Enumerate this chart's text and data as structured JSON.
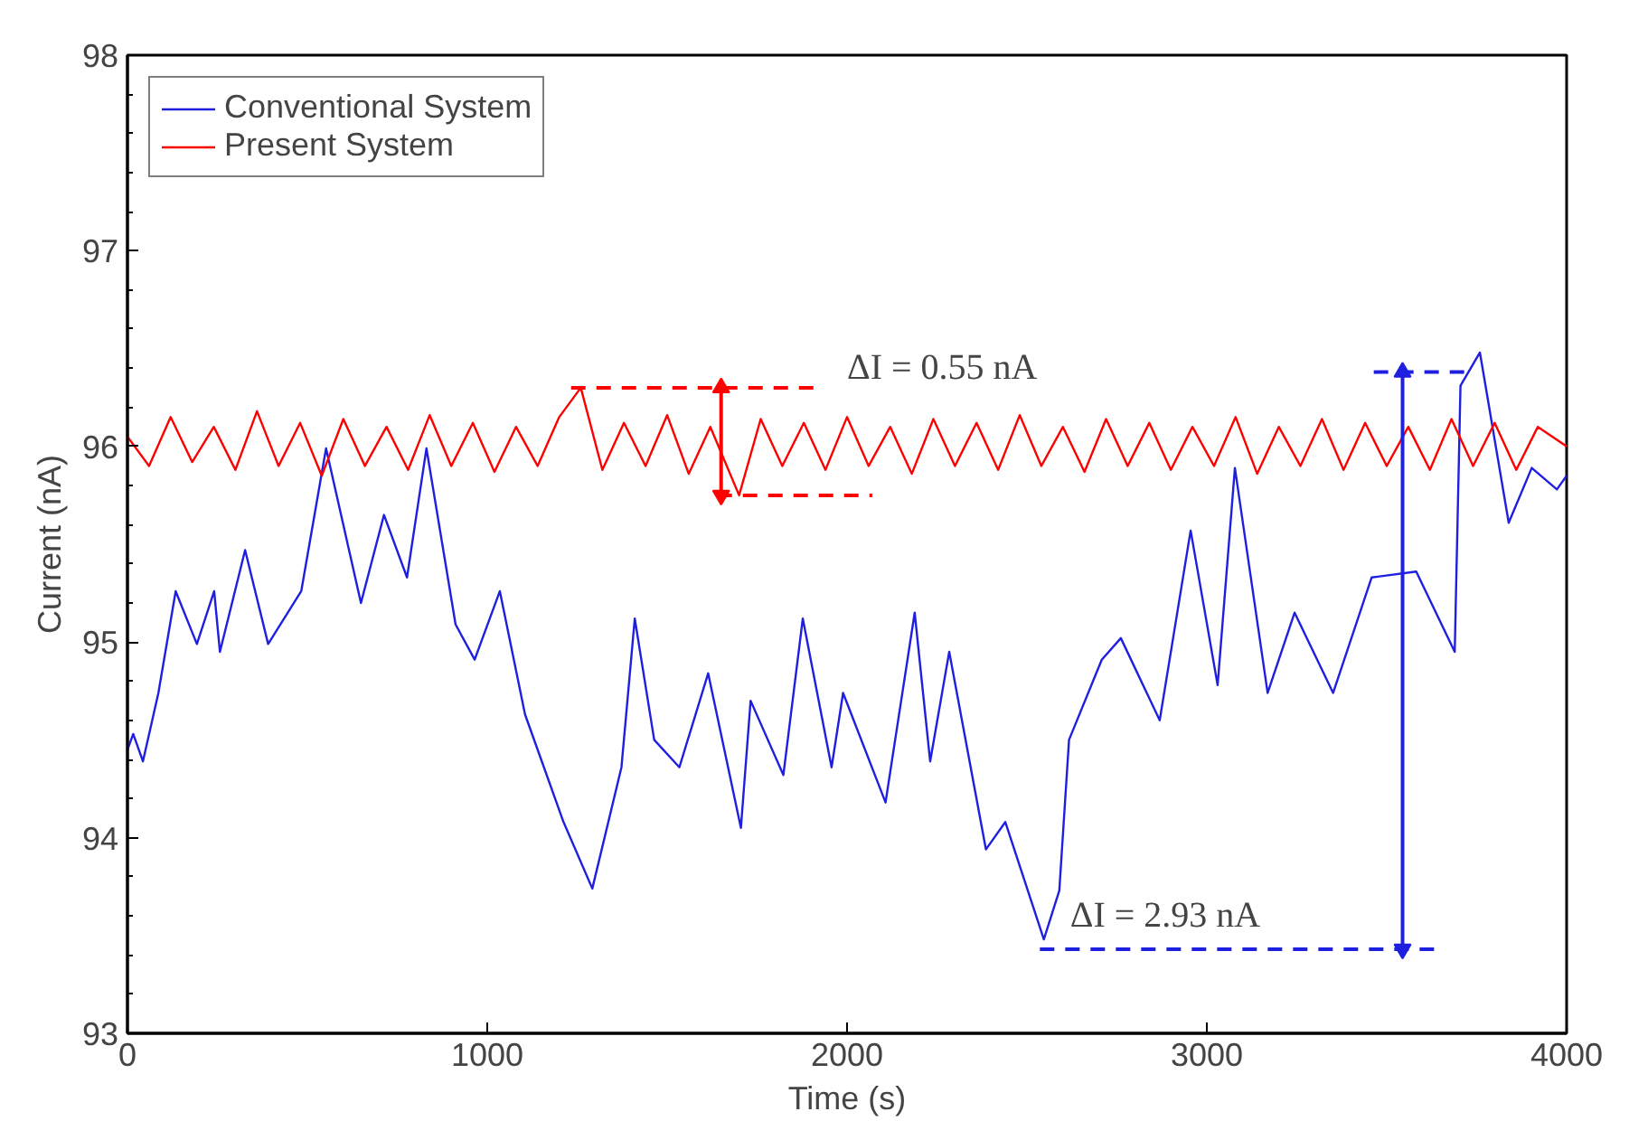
{
  "chart_data": {
    "type": "line",
    "xlabel": "Time (s)",
    "ylabel": "Current (nA)",
    "xlim": [
      0,
      4000
    ],
    "ylim": [
      93,
      98
    ],
    "xticks": [
      0,
      1000,
      2000,
      3000,
      4000
    ],
    "yticks": [
      93,
      94,
      95,
      96,
      97,
      98
    ],
    "grid": false,
    "legend": "top left",
    "marker": "none",
    "line_style": "solid",
    "series": [
      {
        "name": "Conventional System",
        "color": "#1f1fe0",
        "x": [
          0,
          16,
          43,
          86,
          134,
          193,
          241,
          257,
          327,
          391,
          483,
          552,
          649,
          713,
          777,
          831,
          912,
          965,
          1035,
          1105,
          1212,
          1292,
          1373,
          1410,
          1464,
          1534,
          1614,
          1705,
          1732,
          1823,
          1877,
          1957,
          1989,
          2107,
          2188,
          2231,
          2284,
          2386,
          2440,
          2547,
          2590,
          2617,
          2708,
          2761,
          2869,
          2955,
          3030,
          3078,
          3169,
          3244,
          3351,
          3458,
          3582,
          3689,
          3705,
          3759,
          3839,
          3903,
          3973,
          4000
        ],
        "values": [
          94.45,
          94.53,
          94.39,
          94.74,
          95.26,
          94.99,
          95.26,
          94.95,
          95.47,
          94.99,
          95.26,
          95.99,
          95.2,
          95.65,
          95.33,
          95.99,
          95.09,
          94.91,
          95.26,
          94.63,
          94.08,
          93.74,
          94.36,
          95.12,
          94.5,
          94.36,
          94.84,
          94.05,
          94.7,
          94.32,
          95.12,
          94.36,
          94.74,
          94.18,
          95.15,
          94.39,
          94.95,
          93.94,
          94.08,
          93.48,
          93.73,
          94.5,
          94.91,
          95.02,
          94.6,
          95.57,
          94.78,
          95.89,
          94.74,
          95.15,
          94.74,
          95.33,
          95.36,
          94.95,
          96.31,
          96.48,
          95.61,
          95.89,
          95.78,
          95.85
        ]
      },
      {
        "name": "Present System",
        "color": "#ff0000",
        "x": [
          0,
          60,
          120,
          180,
          240,
          300,
          360,
          420,
          480,
          540,
          600,
          660,
          720,
          780,
          840,
          900,
          960,
          1020,
          1080,
          1140,
          1200,
          1260,
          1320,
          1380,
          1440,
          1500,
          1560,
          1620,
          1700,
          1760,
          1820,
          1880,
          1940,
          2000,
          2060,
          2120,
          2180,
          2240,
          2300,
          2360,
          2420,
          2480,
          2540,
          2600,
          2660,
          2720,
          2780,
          2840,
          2900,
          2960,
          3020,
          3080,
          3140,
          3200,
          3260,
          3320,
          3380,
          3440,
          3500,
          3560,
          3620,
          3680,
          3740,
          3800,
          3860,
          3920,
          4000
        ],
        "values": [
          96.05,
          95.9,
          96.15,
          95.92,
          96.1,
          95.88,
          96.18,
          95.9,
          96.12,
          95.85,
          96.14,
          95.9,
          96.1,
          95.88,
          96.16,
          95.9,
          96.12,
          95.87,
          96.1,
          95.9,
          96.15,
          96.3,
          95.88,
          96.12,
          95.9,
          96.16,
          95.86,
          96.1,
          95.75,
          96.14,
          95.9,
          96.12,
          95.88,
          96.15,
          95.9,
          96.1,
          95.86,
          96.14,
          95.9,
          96.12,
          95.88,
          96.16,
          95.9,
          96.1,
          95.87,
          96.14,
          95.9,
          96.12,
          95.88,
          96.1,
          95.9,
          96.15,
          95.86,
          96.1,
          95.9,
          96.14,
          95.88,
          96.12,
          95.9,
          96.1,
          95.88,
          96.14,
          95.9,
          96.12,
          95.88,
          96.1,
          96.0
        ]
      },
      {
        "color": "#ff0000",
        "line_style": "dashed",
        "x": [
          1233,
          1909
        ],
        "values": [
          96.3,
          96.3
        ]
      },
      {
        "color": "#ff0000",
        "line_style": "dashed",
        "x": [
          1640,
          2070
        ],
        "values": [
          95.75,
          95.75
        ]
      },
      {
        "color": "#ff0000",
        "marker": "triangle",
        "x": [
          1650,
          1650
        ],
        "values": [
          95.75,
          96.3
        ]
      },
      {
        "color": "#1f1fe0",
        "line_style": "dashed",
        "x": [
          3464,
          3743
        ],
        "values": [
          96.38,
          96.38
        ]
      },
      {
        "color": "#1f1fe0",
        "line_style": "dashed",
        "x": [
          2536,
          3635
        ],
        "values": [
          93.43,
          93.43
        ]
      },
      {
        "color": "#1f1fe0",
        "marker": "triangle",
        "x": [
          3544,
          3544
        ],
        "values": [
          93.43,
          96.38
        ]
      }
    ],
    "annotations": [
      "ΔI =  0.55 nA",
      "ΔI =  2.93  nA"
    ]
  }
}
